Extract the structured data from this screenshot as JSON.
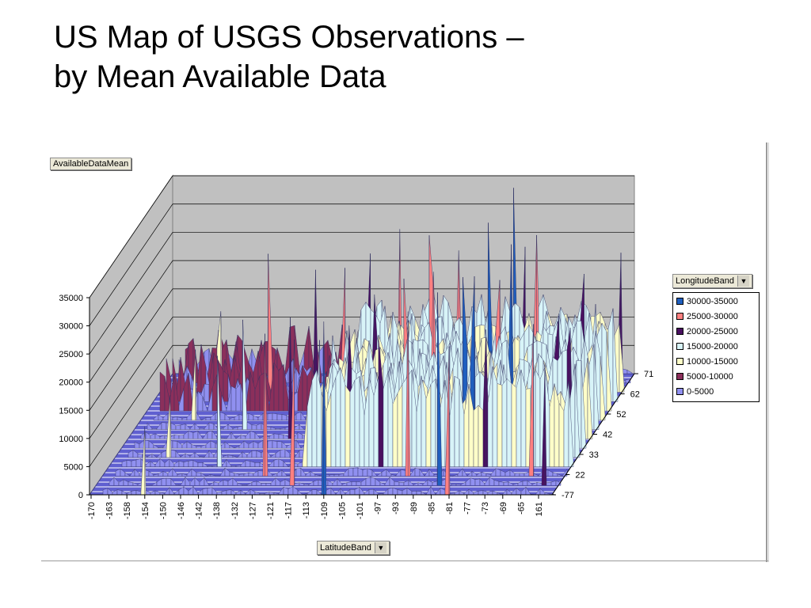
{
  "slide": {
    "title_line1": "US Map of USGS Observations –",
    "title_line2": "by Mean Available Data"
  },
  "pivot": {
    "data_field": "AvailableDataMean",
    "series_field": "LongitudeBand",
    "category_field": "LatitudeBand",
    "dropdown_icon": "chevron-down-icon"
  },
  "chart_data": {
    "type": "3d-area",
    "title": "",
    "ylabel": "AvailableDataMean",
    "xlabel": "LatitudeBand",
    "zlabel": "LongitudeBand",
    "ylim": [
      0,
      35000
    ],
    "y_ticks": [
      "0",
      "5000",
      "10000",
      "15000",
      "20000",
      "25000",
      "30000",
      "35000"
    ],
    "x_ticks": [
      "-170",
      "-163",
      "-158",
      "-154",
      "-150",
      "-146",
      "-142",
      "-138",
      "-132",
      "-127",
      "-121",
      "-117",
      "-113",
      "-109",
      "-105",
      "-101",
      "-97",
      "-93",
      "-89",
      "-85",
      "-81",
      "-77",
      "-73",
      "-69",
      "-65",
      "161"
    ],
    "depth_ticks": [
      "-77",
      "22",
      "33",
      "42",
      "52",
      "62",
      "71"
    ],
    "legend_title": "LongitudeBand",
    "legend": [
      {
        "label": "30000-35000",
        "color": "#1f5fbf"
      },
      {
        "label": "25000-30000",
        "color": "#ff8080"
      },
      {
        "label": "20000-25000",
        "color": "#4a1060"
      },
      {
        "label": "15000-20000",
        "color": "#d8f4f8"
      },
      {
        "label": "10000-15000",
        "color": "#ffffc8"
      },
      {
        "label": "5000-10000",
        "color": "#8b2f5b"
      },
      {
        "label": "0-5000",
        "color": "#9090f0"
      }
    ],
    "peaks": [
      {
        "lat": -154,
        "value": 13000
      },
      {
        "lat": -142,
        "value": 27000
      },
      {
        "lat": -127,
        "value": 28000
      },
      {
        "lat": -117,
        "value": 26000
      },
      {
        "lat": -109,
        "value": 31000
      },
      {
        "lat": -101,
        "value": 29000
      },
      {
        "lat": -93,
        "value": 33000
      },
      {
        "lat": -85,
        "value": 35000
      },
      {
        "lat": -81,
        "value": 33000
      },
      {
        "lat": -77,
        "value": 34000
      },
      {
        "lat": -65,
        "value": 30000
      },
      {
        "lat": 161,
        "value": 25000
      }
    ],
    "grid": true,
    "legend_position": "right"
  }
}
